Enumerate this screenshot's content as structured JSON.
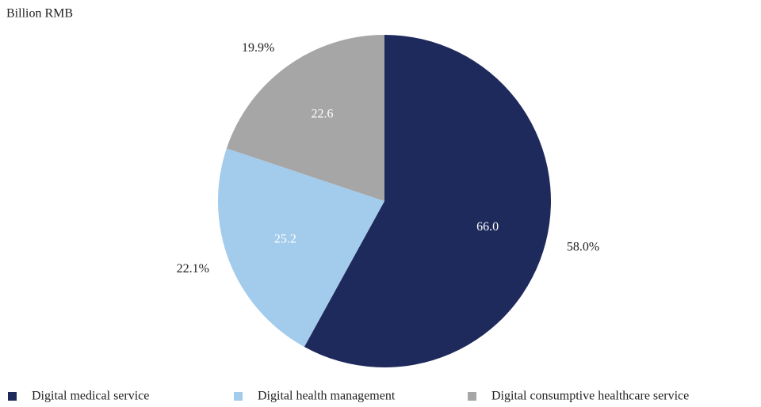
{
  "chart_data": {
    "type": "pie",
    "title": "Billion RMB",
    "categories": [
      "Digital medical service",
      "Digital health management",
      "Digital consumptive healthcare service"
    ],
    "values": [
      66.0,
      25.2,
      22.6
    ],
    "value_labels": [
      "66.0",
      "25.2",
      "22.6"
    ],
    "percent_labels": [
      "58.0%",
      "22.1%",
      "19.9%"
    ],
    "colors": [
      "#1f2a5c",
      "#a3cbeb",
      "#a6a6a6"
    ],
    "legend": "bottom"
  }
}
